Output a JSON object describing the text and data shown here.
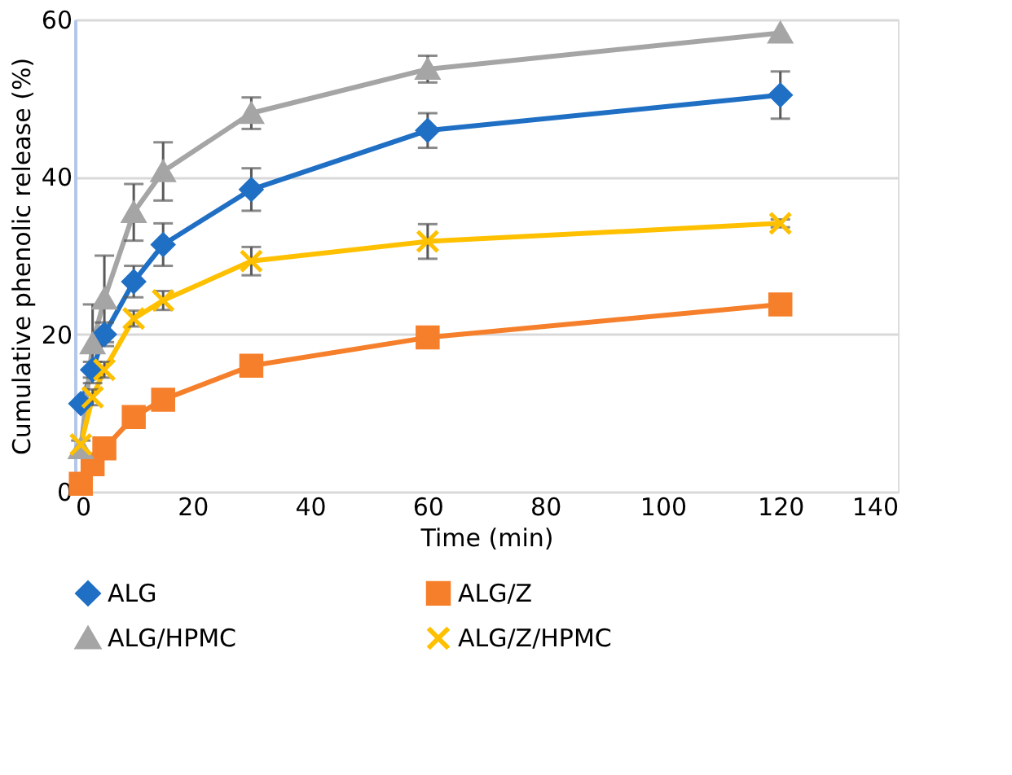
{
  "chart_data": {
    "type": "line",
    "xlabel": "Time (min)",
    "ylabel": "Cumulative phenolic release (%)",
    "xlim": [
      0,
      140
    ],
    "xticks": [
      0,
      20,
      40,
      60,
      80,
      100,
      120,
      140
    ],
    "ylim": [
      0,
      60
    ],
    "yticks": [
      0,
      20,
      40,
      60
    ],
    "grid": "y",
    "legend": "bottom",
    "line_style": "solid",
    "x": [
      1,
      3,
      5,
      10,
      15,
      30,
      60,
      120
    ],
    "series": [
      {
        "name": "ALG",
        "color": "#1f6fc4",
        "marker": "diamond",
        "values": [
          11.2,
          15.5,
          20,
          26.7,
          31.4,
          38.4,
          45.9,
          50.4
        ],
        "errors": [
          null,
          1,
          1.5,
          2,
          2.7,
          2.7,
          2.2,
          3
        ]
      },
      {
        "name": "ALG/Z",
        "color": "#f57f2a",
        "marker": "square",
        "values": [
          1,
          3.5,
          5.5,
          9.5,
          11.7,
          16,
          19.6,
          23.8
        ],
        "errors": [
          null,
          null,
          null,
          null,
          null,
          null,
          null,
          null
        ]
      },
      {
        "name": "ALG/HPMC",
        "color": "#a5a5a5",
        "marker": "triangle",
        "values": [
          5.5,
          18.8,
          24.5,
          35.5,
          40.7,
          48.1,
          53.7,
          58.3
        ],
        "errors": [
          1,
          5,
          5.5,
          3.6,
          3.7,
          2,
          1.7,
          null
        ]
      },
      {
        "name": "ALG/Z/HPMC",
        "color": "#ffc000",
        "marker": "cross",
        "values": [
          6,
          12,
          15.5,
          22,
          24.3,
          29.3,
          31.8,
          34.1
        ],
        "errors": [
          null,
          1,
          1,
          1,
          1.2,
          1.8,
          2.2,
          0.5
        ]
      }
    ]
  }
}
